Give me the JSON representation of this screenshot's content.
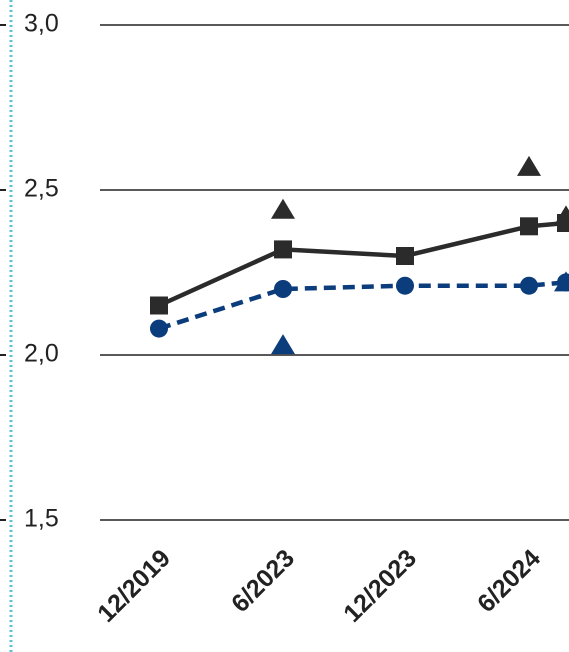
{
  "chart_data": {
    "type": "line",
    "categories": [
      "12/2019",
      "6/2023",
      "12/2023",
      "6/2024",
      null
    ],
    "series": [
      {
        "color": "#2b2b2b",
        "marker": "square",
        "dash": false,
        "line": true,
        "values": [
          2.15,
          2.32,
          2.3,
          2.39,
          2.4
        ]
      },
      {
        "color": "#0b3c7c",
        "marker": "circle",
        "dash": true,
        "line": true,
        "values": [
          2.08,
          2.2,
          2.21,
          2.21,
          2.22
        ]
      },
      {
        "color": "#2b2b2b",
        "marker": "triangle",
        "line": false,
        "values": [
          null,
          2.44,
          null,
          2.57,
          2.42
        ]
      },
      {
        "color": "#0b3c7c",
        "marker": "triangle",
        "line": false,
        "values": [
          null,
          2.03,
          null,
          null,
          2.22
        ]
      }
    ],
    "ylim": [
      1.5,
      3.0
    ],
    "yticks": [
      {
        "value": 1.5,
        "label": "1,5"
      },
      {
        "value": 2.0,
        "label": "2,0"
      },
      {
        "value": 2.5,
        "label": "2,5"
      },
      {
        "value": 3.0,
        "label": "3,0"
      }
    ],
    "grid": true
  }
}
